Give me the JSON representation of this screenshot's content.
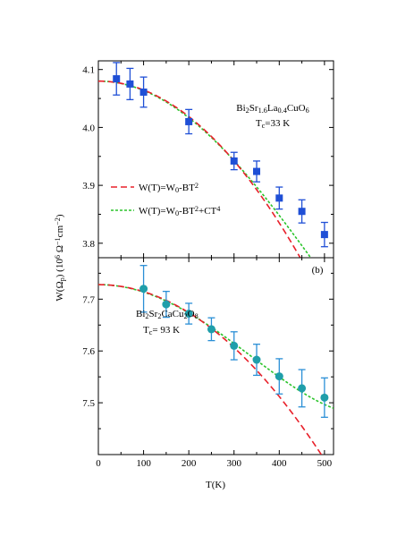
{
  "chart_data": [
    {
      "type": "scatter",
      "panel": "a",
      "panel_label": "",
      "xlim": [
        0,
        520
      ],
      "ylim": [
        3.775,
        4.115
      ],
      "x_ticks": [
        0,
        100,
        200,
        300,
        400,
        500
      ],
      "y_ticks": [
        3.8,
        3.9,
        4.0,
        4.1
      ],
      "y_tick_labels": [
        "3.8",
        "3.9",
        "4.0",
        "4.1"
      ],
      "annotation": {
        "compound_parts": [
          {
            "t": "Bi",
            "s": "n"
          },
          {
            "t": "2",
            "s": "sub"
          },
          {
            "t": "Sr",
            "s": "n"
          },
          {
            "t": "1.6",
            "s": "sub"
          },
          {
            "t": "La",
            "s": "n"
          },
          {
            "t": "0.4",
            "s": "sub"
          },
          {
            "t": "CuO",
            "s": "n"
          },
          {
            "t": "6",
            "s": "sub"
          }
        ],
        "tc_parts": [
          {
            "t": "T",
            "s": "n"
          },
          {
            "t": "c",
            "s": "sub"
          },
          {
            "t": "=33 K",
            "s": "n"
          }
        ]
      },
      "legend": [
        {
          "parts": [
            {
              "t": "W(T)=W",
              "s": "n"
            },
            {
              "t": "0",
              "s": "sub"
            },
            {
              "t": "-BT",
              "s": "n"
            },
            {
              "t": "2",
              "s": "sup"
            }
          ],
          "color": "#e8202a",
          "dash": "7,4"
        },
        {
          "parts": [
            {
              "t": "W(T)=W",
              "s": "n"
            },
            {
              "t": "0",
              "s": "sub"
            },
            {
              "t": "-BT",
              "s": "n"
            },
            {
              "t": "2",
              "s": "sup"
            },
            {
              "t": "+CT",
              "s": "n"
            },
            {
              "t": "4",
              "s": "sup"
            }
          ],
          "color": "#2bc42b",
          "dash": "3,2"
        }
      ],
      "marker": "square",
      "marker_color": "#1f4fd6",
      "error_color": "#1f4fd6",
      "points": [
        {
          "x": 40,
          "y": 4.084,
          "err": 0.028
        },
        {
          "x": 70,
          "y": 4.075,
          "err": 0.027
        },
        {
          "x": 100,
          "y": 4.061,
          "err": 0.026
        },
        {
          "x": 200,
          "y": 4.01,
          "err": 0.021
        },
        {
          "x": 300,
          "y": 3.942,
          "err": 0.015
        },
        {
          "x": 350,
          "y": 3.924,
          "err": 0.018
        },
        {
          "x": 400,
          "y": 3.878,
          "err": 0.019
        },
        {
          "x": 450,
          "y": 3.855,
          "err": 0.02
        },
        {
          "x": 500,
          "y": 3.815,
          "err": 0.021
        }
      ],
      "fit_t2": {
        "w0": 4.08,
        "b": 1.531e-06,
        "color": "#e8202a"
      },
      "fit_t4": {
        "w0": 4.08,
        "b": 1.626e-06,
        "c": 1.1e-12,
        "color": "#2bc42b"
      }
    },
    {
      "type": "scatter",
      "panel": "b",
      "panel_label": "(b)",
      "xlim": [
        0,
        520
      ],
      "ylim": [
        7.4,
        7.78
      ],
      "x_ticks": [
        0,
        100,
        200,
        300,
        400,
        500
      ],
      "x_tick_labels": [
        "0",
        "100",
        "200",
        "300",
        "400",
        "500"
      ],
      "y_ticks": [
        7.5,
        7.6,
        7.7
      ],
      "y_tick_labels": [
        "7.5",
        "7.6",
        "7.7"
      ],
      "annotation": {
        "compound_parts": [
          {
            "t": "Bi",
            "s": "n"
          },
          {
            "t": "2",
            "s": "sub"
          },
          {
            "t": "Sr",
            "s": "n"
          },
          {
            "t": "2",
            "s": "sub"
          },
          {
            "t": "CaCu",
            "s": "n"
          },
          {
            "t": "2",
            "s": "sub"
          },
          {
            "t": "O",
            "s": "n"
          },
          {
            "t": "8",
            "s": "sub"
          }
        ],
        "tc_parts": [
          {
            "t": "T",
            "s": "n"
          },
          {
            "t": "c",
            "s": "sub"
          },
          {
            "t": "= 93 K",
            "s": "n"
          }
        ]
      },
      "marker": "circle",
      "marker_color": "#1f9eaa",
      "error_color": "#2a8fd6",
      "points": [
        {
          "x": 100,
          "y": 7.72,
          "err": 0.045
        },
        {
          "x": 150,
          "y": 7.69,
          "err": 0.025
        },
        {
          "x": 200,
          "y": 7.672,
          "err": 0.02
        },
        {
          "x": 250,
          "y": 7.642,
          "err": 0.022
        },
        {
          "x": 300,
          "y": 7.61,
          "err": 0.027
        },
        {
          "x": 350,
          "y": 7.583,
          "err": 0.03
        },
        {
          "x": 400,
          "y": 7.551,
          "err": 0.034
        },
        {
          "x": 450,
          "y": 7.528,
          "err": 0.036
        },
        {
          "x": 500,
          "y": 7.51,
          "err": 0.038
        }
      ],
      "fit_t2": {
        "w0": 7.728,
        "b": 1.35e-06,
        "color": "#e8202a"
      },
      "fit_t4": {
        "w0": 7.728,
        "b": 1.45e-06,
        "c": 2.1e-12,
        "color": "#2bc42b"
      }
    }
  ],
  "axes": {
    "xlabel": "T(K)",
    "ylabel_parts": [
      {
        "t": "W(Ω",
        "s": "n"
      },
      {
        "t": "p",
        "s": "sub"
      },
      {
        "t": ") (10",
        "s": "n"
      },
      {
        "t": "6",
        "s": "sup"
      },
      {
        "t": " Ω",
        "s": "n"
      },
      {
        "t": "−1",
        "s": "sup"
      },
      {
        "t": "cm",
        "s": "n"
      },
      {
        "t": "−2",
        "s": "sup"
      },
      {
        "t": ")",
        "s": "n"
      }
    ]
  }
}
